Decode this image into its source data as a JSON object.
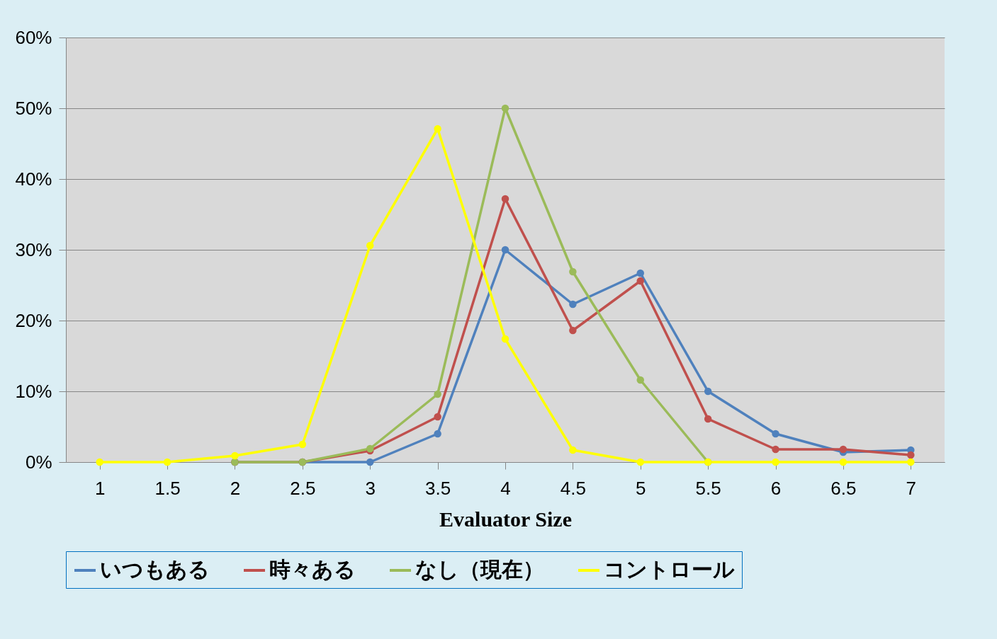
{
  "chart_data": {
    "type": "line",
    "xlabel": "Evaluator Size",
    "categories": [
      "1",
      "1.5",
      "2",
      "2.5",
      "3",
      "3.5",
      "4",
      "4.5",
      "5",
      "5.5",
      "6",
      "6.5",
      "7"
    ],
    "series": [
      {
        "name": "いつもある",
        "color": "#4f81bd",
        "values": [
          null,
          null,
          0,
          0,
          0,
          4.0,
          30.0,
          22.3,
          26.7,
          10.0,
          4.0,
          1.4,
          1.7
        ]
      },
      {
        "name": "時々ある",
        "color": "#c0504d",
        "values": [
          null,
          null,
          0,
          0,
          1.6,
          6.4,
          37.2,
          18.6,
          25.6,
          6.1,
          1.8,
          1.8,
          1.0
        ]
      },
      {
        "name": "なし（現在）",
        "color": "#9bbb59",
        "values": [
          null,
          null,
          0,
          0,
          1.9,
          9.6,
          50.0,
          26.9,
          11.6,
          0,
          null,
          null,
          null
        ]
      },
      {
        "name": "コントロール",
        "color": "#ffff00",
        "values": [
          0,
          0,
          0.9,
          2.5,
          30.6,
          47.1,
          17.4,
          1.7,
          0,
          0,
          0,
          0,
          0
        ]
      }
    ],
    "ylim": [
      0,
      60
    ],
    "yticks": [
      {
        "value": 0,
        "label": "0%"
      },
      {
        "value": 10,
        "label": "10%"
      },
      {
        "value": 20,
        "label": "20%"
      },
      {
        "value": 30,
        "label": "30%"
      },
      {
        "value": 40,
        "label": "40%"
      },
      {
        "value": 50,
        "label": "50%"
      },
      {
        "value": 60,
        "label": "60%"
      }
    ],
    "grid": "y",
    "legend": "bottom",
    "marker": "circle",
    "line_style": "solid"
  }
}
